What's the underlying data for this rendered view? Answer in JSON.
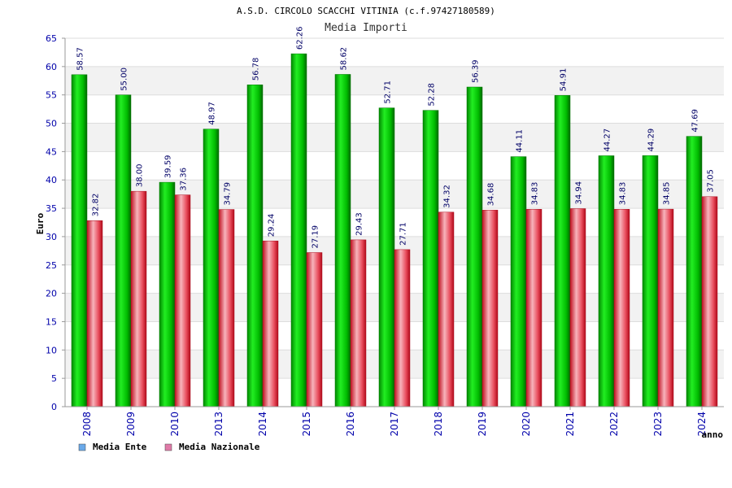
{
  "header": {
    "title": "A.S.D. CIRCOLO SCACCHI VITINIA (c.f.97427180589)",
    "subtitle": "Media Importi"
  },
  "colors": {
    "ente": "#00cc00",
    "nazionale": "#e84c5c",
    "legend_ente": "#6aa9e9",
    "legend_nazionale": "#e07aa8"
  },
  "chart_data": {
    "type": "bar",
    "title": "Media Importi",
    "xlabel": "anno",
    "ylabel": "Euro",
    "ylim": [
      0,
      65
    ],
    "yticks": [
      0,
      5,
      10,
      15,
      20,
      25,
      30,
      35,
      40,
      45,
      50,
      55,
      60,
      65
    ],
    "categories": [
      "2008",
      "2009",
      "2010",
      "2013",
      "2014",
      "2015",
      "2016",
      "2017",
      "2018",
      "2019",
      "2020",
      "2021",
      "2022",
      "2023",
      "2024"
    ],
    "series": [
      {
        "name": "Media Ente",
        "values": [
          58.57,
          55.0,
          39.59,
          48.97,
          56.78,
          62.26,
          58.62,
          52.71,
          52.28,
          56.39,
          44.11,
          54.91,
          44.27,
          44.29,
          47.69
        ],
        "labels": [
          "58.57",
          "55.00",
          "39.59",
          "48.97",
          "56.78",
          "62.26",
          "58.62",
          "52.71",
          "52.28",
          "56.39",
          "44.11",
          "54.91",
          "44.27",
          "44.29",
          "47.69"
        ]
      },
      {
        "name": "Media Nazionale",
        "values": [
          32.82,
          38.0,
          37.36,
          34.79,
          29.24,
          27.19,
          29.43,
          27.71,
          34.32,
          34.68,
          34.83,
          34.94,
          34.83,
          34.85,
          37.05
        ],
        "labels": [
          "32.82",
          "38.00",
          "37.36",
          "34.79",
          "29.24",
          "27.19",
          "29.43",
          "27.71",
          "34.32",
          "34.68",
          "34.83",
          "34.94",
          "34.83",
          "34.85",
          "37.05"
        ]
      }
    ],
    "grid": true,
    "legend": "bottom-left"
  }
}
